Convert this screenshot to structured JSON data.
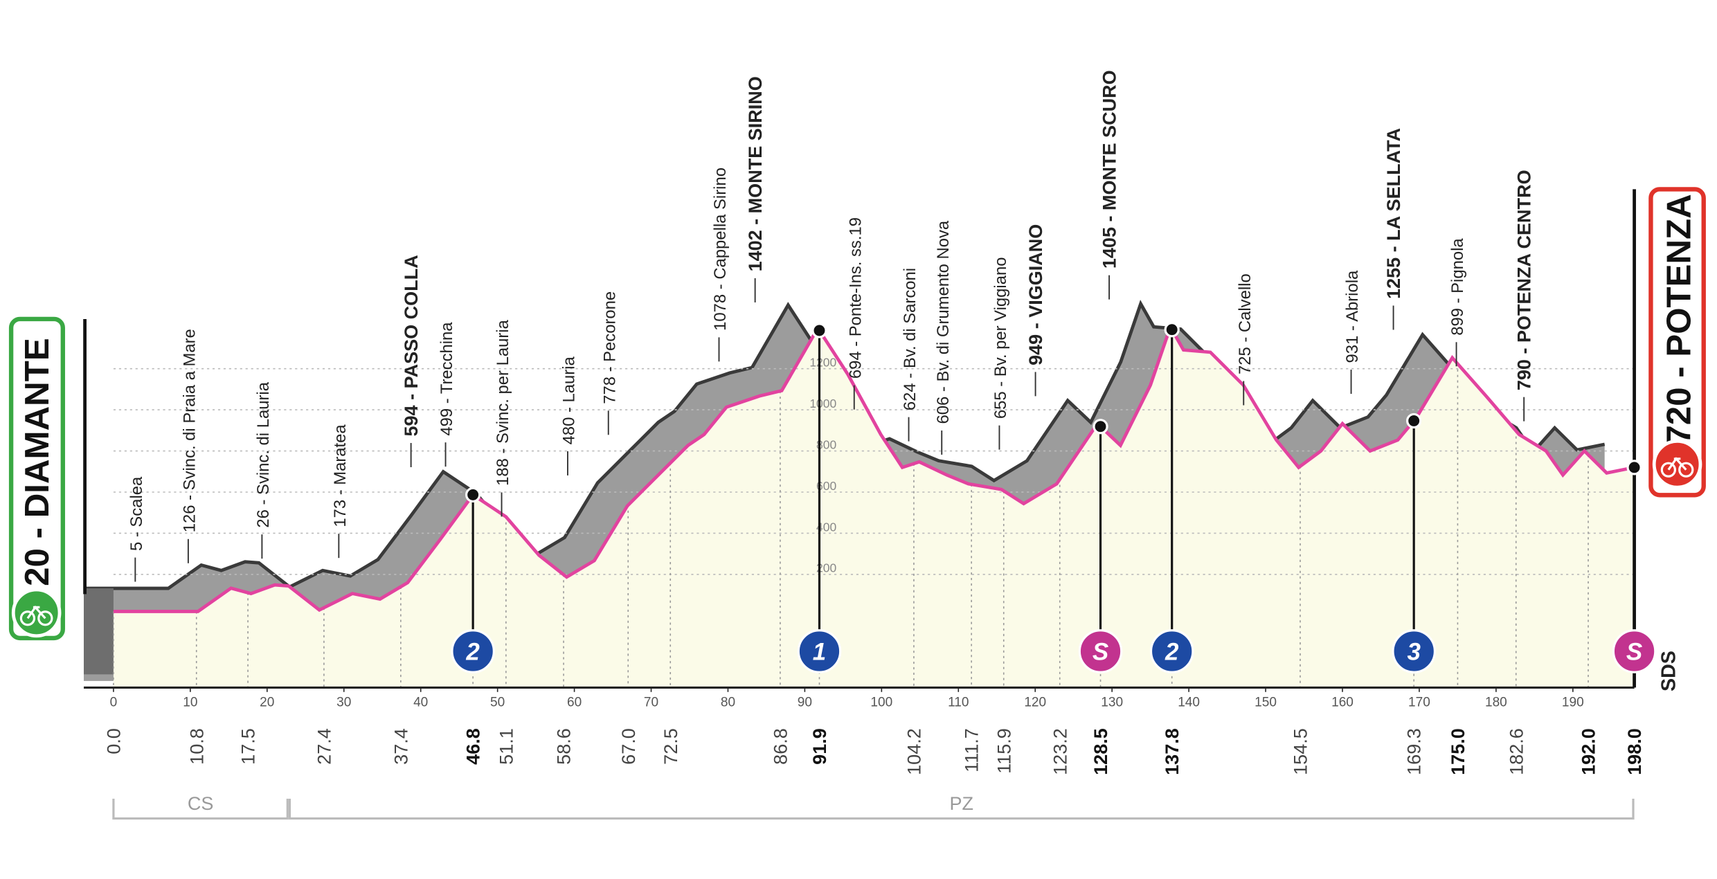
{
  "chart_data": {
    "type": "profile",
    "start": "20 - DIAMANTE",
    "finish": "720 - POTENZA",
    "logo": "SDS",
    "x": [
      0,
      11,
      15.3,
      17.9,
      21,
      22.8,
      26.8,
      31.1,
      34.7,
      38.3,
      42.6,
      46.8,
      51.1,
      55.4,
      59,
      62.6,
      66.9,
      71.2,
      74.8,
      76.9,
      79.8,
      84.1,
      87,
      91.7,
      95.6,
      99.9,
      102.7,
      104.9,
      108.5,
      111.3,
      115.6,
      118.5,
      122.8,
      128.1,
      131.1,
      135,
      137.6,
      139.3,
      142.8,
      147.1,
      151.4,
      154.3,
      157.2,
      160,
      163.6,
      167.2,
      169.6,
      174.3,
      178.7,
      183,
      186.5,
      188.7,
      191.5,
      194.4,
      198
    ],
    "values": [
      20,
      20,
      133,
      107,
      149,
      144,
      27,
      107,
      80,
      160,
      373,
      587,
      480,
      293,
      187,
      267,
      533,
      693,
      827,
      880,
      1013,
      1067,
      1093,
      1397,
      1173,
      880,
      720,
      747,
      683,
      640,
      613,
      544,
      640,
      933,
      827,
      1120,
      1403,
      1291,
      1280,
      1120,
      853,
      720,
      800,
      933,
      800,
      853,
      960,
      1253,
      1067,
      880,
      800,
      683,
      800,
      693,
      720
    ],
    "color": "#e2439f",
    "xlim": [
      0,
      198
    ],
    "ylim": [
      -350,
      1500
    ],
    "xticks": [
      0,
      10,
      20,
      30,
      40,
      50,
      60,
      70,
      80,
      90,
      100,
      110,
      120,
      130,
      140,
      150,
      160,
      170,
      180,
      190
    ],
    "yticks": [
      200,
      400,
      600,
      800,
      1000,
      1200
    ],
    "grid": true,
    "places": [
      {
        "km": 6.7,
        "text": "5 - Scalea",
        "bold": false
      },
      {
        "km": 13.6,
        "text": "126 - Svinc. di Praia a Mare",
        "bold": false
      },
      {
        "km": 23.2,
        "text": "26 - Svinc. di Lauria",
        "bold": false
      },
      {
        "km": 33.2,
        "text": "173 - Maratea",
        "bold": false
      },
      {
        "km": 42.6,
        "text": "594 - PASSO COLLA",
        "bold": true
      },
      {
        "km": 47.1,
        "text": "499 - Trecchina",
        "bold": false
      },
      {
        "km": 54.4,
        "text": "188 - Svinc. per Lauria",
        "bold": false
      },
      {
        "km": 63,
        "text": "480 - Lauria",
        "bold": false
      },
      {
        "km": 68.3,
        "text": "778 - Pecorone",
        "bold": false
      },
      {
        "km": 82.7,
        "text": "1078 - Cappella Sirino",
        "bold": false
      },
      {
        "km": 87.4,
        "text": "1402 - MONTE SIRINO",
        "bold": true
      },
      {
        "km": 100.3,
        "text": "694 - Ponte-Ins. ss.19",
        "bold": false
      },
      {
        "km": 107.4,
        "text": "624 - Bv. di Sarconi",
        "bold": false
      },
      {
        "km": 111.7,
        "text": "606 - Bv. di Grumento Nova",
        "bold": false
      },
      {
        "km": 119.2,
        "text": "655 - Bv. per Viggiano",
        "bold": false
      },
      {
        "km": 123.9,
        "text": "949 - VIGGIANO",
        "bold": true
      },
      {
        "km": 133.5,
        "text": "1405 - MONTE SCURO",
        "bold": true
      },
      {
        "km": 151,
        "text": "725 - Calvello",
        "bold": false
      },
      {
        "km": 165,
        "text": "931 - Abriola",
        "bold": false
      },
      {
        "km": 170.5,
        "text": "1255 - LA SELLATA",
        "bold": true
      },
      {
        "km": 178.7,
        "text": "899 - Pignola",
        "bold": false
      },
      {
        "km": 187.5,
        "text": "790 - POTENZA CENTRO",
        "bold": true
      }
    ],
    "km_points": [
      {
        "value": 0,
        "label": "0.0"
      },
      10.8,
      17.5,
      27.4,
      37.4,
      51.1,
      58.6,
      {
        "value": 67,
        "label": "67.0"
      },
      72.5,
      86.8,
      104.2,
      111.7,
      115.9,
      123.2,
      154.5,
      169.3,
      182.6
    ],
    "km_points_major": [
      46.8,
      91.9,
      128.5,
      137.8,
      {
        "value": 175,
        "label": "175.0"
      },
      {
        "value": 192,
        "label": "192.0"
      },
      {
        "value": 198,
        "label": "198.0"
      }
    ],
    "markers": [
      {
        "km": 46.8,
        "kind": "kom",
        "label": "2"
      },
      {
        "km": 91.9,
        "kind": "kom",
        "label": "1"
      },
      {
        "km": 128.5,
        "kind": "sprint",
        "label": "S"
      },
      {
        "km": 137.8,
        "kind": "kom",
        "label": "2"
      },
      {
        "km": 169.3,
        "kind": "kom",
        "label": "3"
      },
      {
        "km": 198,
        "kind": "sprint",
        "label": "S"
      }
    ],
    "kom_color": "#1d4aa3",
    "sprint_color": "#c2338f",
    "regions": [
      {
        "label": "CS",
        "from": 0,
        "to": 22.8
      },
      {
        "label": "PZ",
        "from": 22.8,
        "to": 198
      }
    ]
  }
}
